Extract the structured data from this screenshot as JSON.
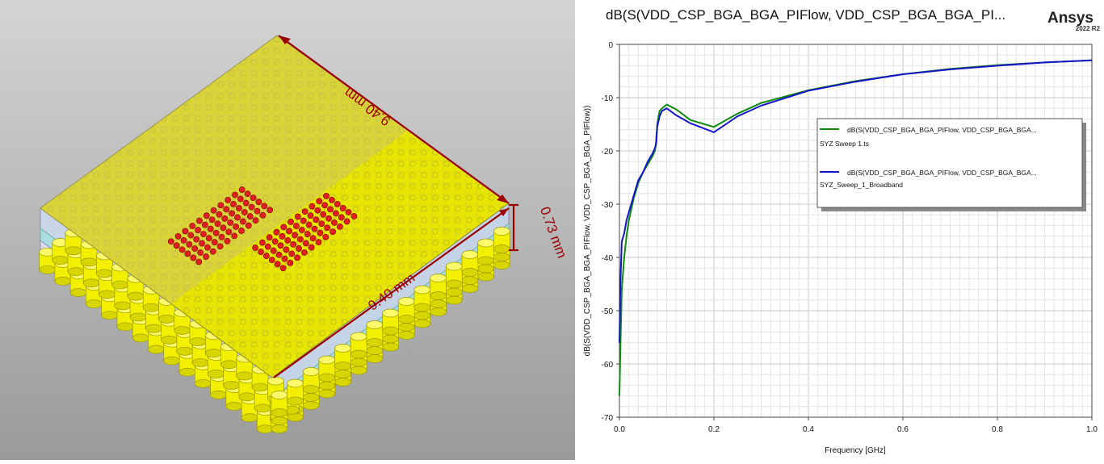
{
  "model_view": {
    "dimension_width": "9.40 mm",
    "dimension_depth": "9.40 mm",
    "dimension_height": "0.73 mm",
    "colors": {
      "substrate": "#e8e600",
      "ball": "#f2f000",
      "via_pad": "#e02020",
      "dimension": "#9b0000",
      "background_top": "#d2d2d2",
      "background_bottom": "#9c9c9c"
    }
  },
  "plot": {
    "title": "dB(S(VDD_CSP_BGA_BGA_PIFlow, VDD_CSP_BGA_BGA_PI...",
    "brand": "Ansys",
    "version": "2022 R2"
  },
  "chart_data": {
    "type": "line",
    "title": "dB(S(VDD_CSP_BGA_BGA_PIFlow, VDD_CSP_BGA_BGA_PI...",
    "xlabel": "Frequency [GHz]",
    "ylabel": "dB(S(VDD_CSP_BGA_BGA_PIFlow, VDD_CSP_BGA_BGA_PIFlow))",
    "xlim": [
      0,
      1.0
    ],
    "ylim": [
      -70,
      0
    ],
    "xticks": [
      "0.0",
      "0.2",
      "0.4",
      "0.6",
      "0.8",
      "1.0"
    ],
    "yticks": [
      "0",
      "-10",
      "-20",
      "-30",
      "-40",
      "-50",
      "-60",
      "-70"
    ],
    "grid": true,
    "legend_position": "right",
    "series": [
      {
        "name": "dB(S(VDD_CSP_BGA_BGA_PIFlow, VDD_CSP_BGA_BGA...",
        "name_line2": "SYZ Sweep 1.ts",
        "color": "#0d8a0d",
        "x": [
          0.0,
          0.002,
          0.005,
          0.01,
          0.015,
          0.02,
          0.03,
          0.04,
          0.05,
          0.06,
          0.07,
          0.075,
          0.077,
          0.08,
          0.085,
          0.09,
          0.1,
          0.12,
          0.15,
          0.2,
          0.25,
          0.3,
          0.4,
          0.5,
          0.6,
          0.7,
          0.8,
          0.9,
          1.0
        ],
        "y": [
          -66,
          -57,
          -46,
          -40,
          -36,
          -33,
          -29,
          -26,
          -24,
          -22.5,
          -21,
          -20,
          -19,
          -15,
          -12.5,
          -12,
          -11.3,
          -12.2,
          -14.2,
          -15.5,
          -13,
          -11,
          -8.6,
          -6.9,
          -5.6,
          -4.6,
          -3.9,
          -3.4,
          -3.0
        ]
      },
      {
        "name": "dB(S(VDD_CSP_BGA_BGA_PIFlow, VDD_CSP_BGA_BGA...",
        "name_line2": "SYZ_Sweep_1_Broadband",
        "color": "#1414c8",
        "x": [
          0.0,
          0.002,
          0.005,
          0.01,
          0.015,
          0.02,
          0.03,
          0.04,
          0.05,
          0.06,
          0.07,
          0.075,
          0.078,
          0.08,
          0.085,
          0.09,
          0.1,
          0.12,
          0.15,
          0.2,
          0.25,
          0.3,
          0.4,
          0.5,
          0.6,
          0.7,
          0.8,
          0.9,
          1.0
        ],
        "y": [
          -56,
          -45,
          -37,
          -35.5,
          -33,
          -31.5,
          -28.5,
          -25.5,
          -24,
          -22,
          -20.5,
          -19.5,
          -18.5,
          -15.5,
          -13.5,
          -12.5,
          -12.0,
          -13.3,
          -14.8,
          -16.5,
          -13.5,
          -11.5,
          -8.7,
          -7.0,
          -5.6,
          -4.7,
          -4.0,
          -3.4,
          -3.0
        ]
      }
    ]
  }
}
